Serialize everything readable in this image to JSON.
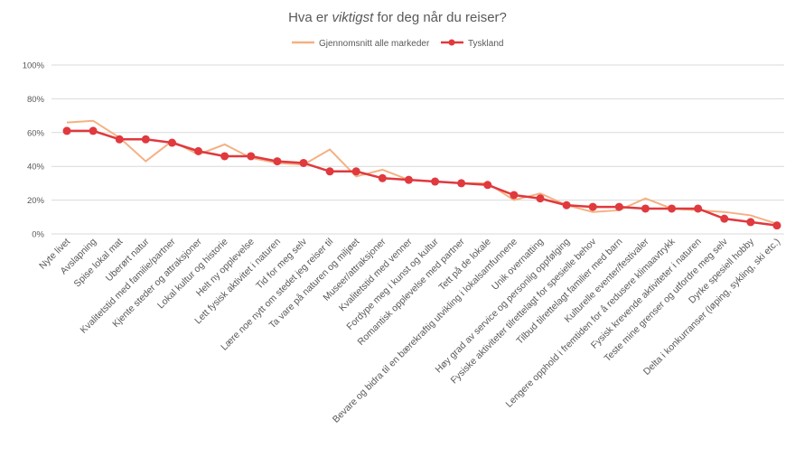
{
  "chart_data": {
    "type": "line",
    "title_parts": [
      "Hva er ",
      "viktigst",
      " for deg når du reiser?"
    ],
    "xlabel": "",
    "ylabel": "",
    "ylim": [
      0,
      100
    ],
    "yticks": [
      "0%",
      "20%",
      "40%",
      "60%",
      "80%",
      "100%"
    ],
    "legend_position": "top-center",
    "grid": true,
    "categories": [
      "Nyte livet",
      "Avslapning",
      "Spise lokal mat",
      "Uberørt natur",
      "Kvalitetstid med familie/partner",
      "Kjente steder og attraksjoner",
      "Lokal kultur og historie",
      "Helt ny opplevelse",
      "Lett fysisk aktivitet i naturen",
      "Tid for meg selv",
      "Lære noe nytt om stedet jeg reiser til",
      "Ta vare på naturen og miljøet",
      "Museer/attraksjoner",
      "Kvalitetstid med venner",
      "Fordype meg i kunst og kultur",
      "Romantisk opplevelse med partner",
      "Tett på de lokale",
      "Bevare og bidra til en bærekraftig utvikling i lokalsamfunnene",
      "Unik overnatting",
      "Høy grad av service og personlig oppfølging",
      "Fysiske aktiviteter tilrettelagt for spesielle behov",
      "Tilbud tilrettelagt familier med barn",
      "Kulturelle eventer/festivaler",
      "Lengere opphold i fremtiden for å redusere klimaavtrykk",
      "Fysisk krevende aktiviteter i naturen",
      "Teste mine grenser og utfordre meg selv",
      "Dyrke spesiell hobby",
      "Delta i konkurranser (løping, sykling, ski etc.)"
    ],
    "series": [
      {
        "name": "Gjennomsnitt alle markeder",
        "color": "#f4b183",
        "values": [
          66,
          67,
          57,
          43,
          55,
          47,
          53,
          45,
          42,
          41,
          50,
          34,
          38,
          32,
          31,
          30,
          30,
          20,
          24,
          17,
          13,
          14,
          21,
          15,
          14,
          13,
          11,
          6
        ]
      },
      {
        "name": "Tyskland",
        "color": "#e0393e",
        "values": [
          61,
          61,
          56,
          56,
          54,
          49,
          46,
          46,
          43,
          42,
          37,
          37,
          33,
          32,
          31,
          30,
          29,
          23,
          21,
          17,
          16,
          16,
          15,
          15,
          15,
          9,
          7,
          5
        ]
      }
    ]
  }
}
